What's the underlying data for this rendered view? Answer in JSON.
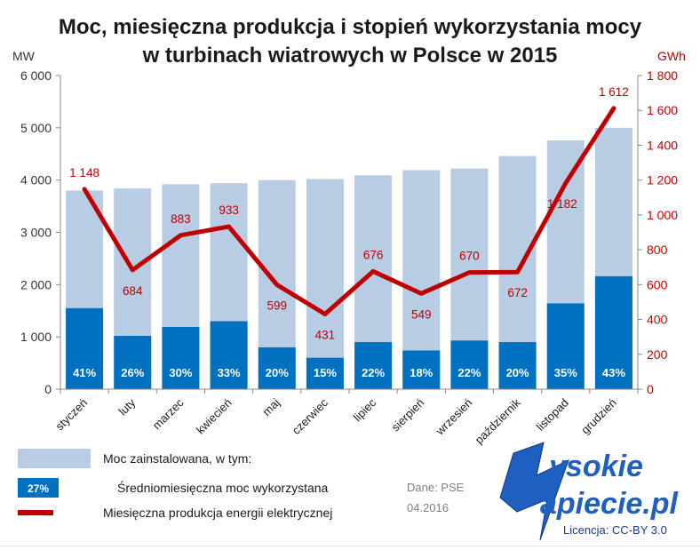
{
  "chart_data": {
    "type": "bar",
    "title_line1": "Moc, miesięczna produkcja i stopień wykorzystania mocy",
    "title_line2": "w turbinach wiatrowych w Polsce w 2015",
    "left_unit": "MW",
    "right_unit": "GWh",
    "ylim_left": [
      0,
      6000
    ],
    "ylim_right": [
      0,
      1800
    ],
    "left_ticks": [
      "6 000",
      "5 000",
      "4 000",
      "3 000",
      "2 000",
      "1 000",
      "0"
    ],
    "right_ticks": [
      "1 800",
      "1 600",
      "1 400",
      "1 200",
      "1 000",
      "800",
      "600",
      "400",
      "200",
      "0"
    ],
    "grid": false,
    "legend_placement": "bottom-left",
    "categories": [
      "styczeń",
      "luty",
      "marzec",
      "kwiecień",
      "maj",
      "czerwiec",
      "lipiec",
      "sierpień",
      "wrzesień",
      "październik",
      "listopad",
      "grudzień"
    ],
    "series": [
      {
        "name": "Moc zainstalowana, w tym:",
        "kind": "bar",
        "axis": "left",
        "color": "#b8cce4",
        "values": [
          3800,
          3840,
          3920,
          3940,
          4000,
          4020,
          4090,
          4190,
          4220,
          4460,
          4760,
          5000
        ]
      },
      {
        "name": "Średniomiesięczna moc wykorzystana",
        "kind": "bar",
        "axis": "left",
        "color": "#0070c0",
        "values": [
          1550,
          1020,
          1190,
          1300,
          800,
          600,
          900,
          740,
          930,
          900,
          1640,
          2160
        ],
        "labels": [
          "41%",
          "26%",
          "30%",
          "33%",
          "20%",
          "15%",
          "22%",
          "18%",
          "22%",
          "20%",
          "35%",
          "43%"
        ]
      },
      {
        "name": "Miesięczna produkcja energii elektrycznej",
        "kind": "line",
        "axis": "right",
        "color": "#c00000",
        "values": [
          1148,
          684,
          883,
          933,
          599,
          431,
          676,
          549,
          670,
          672,
          1182,
          1612
        ],
        "labels": [
          "1 148",
          "684",
          "883",
          "933",
          "599",
          "431",
          "676",
          "549",
          "670",
          "672",
          "1 182",
          "1 612"
        ]
      }
    ],
    "legend_sample_pct": "27%"
  },
  "source": {
    "line1": "Dane: PSE",
    "line2": "04.2016"
  },
  "brand": {
    "line1": "ysokie",
    "line2": "apiecie.pl",
    "license": "Licencja: CC-BY 3.0"
  },
  "colors": {
    "installed": "#b8cce4",
    "used": "#0070c0",
    "production": "#c00000",
    "brand": "#1f5fc0"
  }
}
